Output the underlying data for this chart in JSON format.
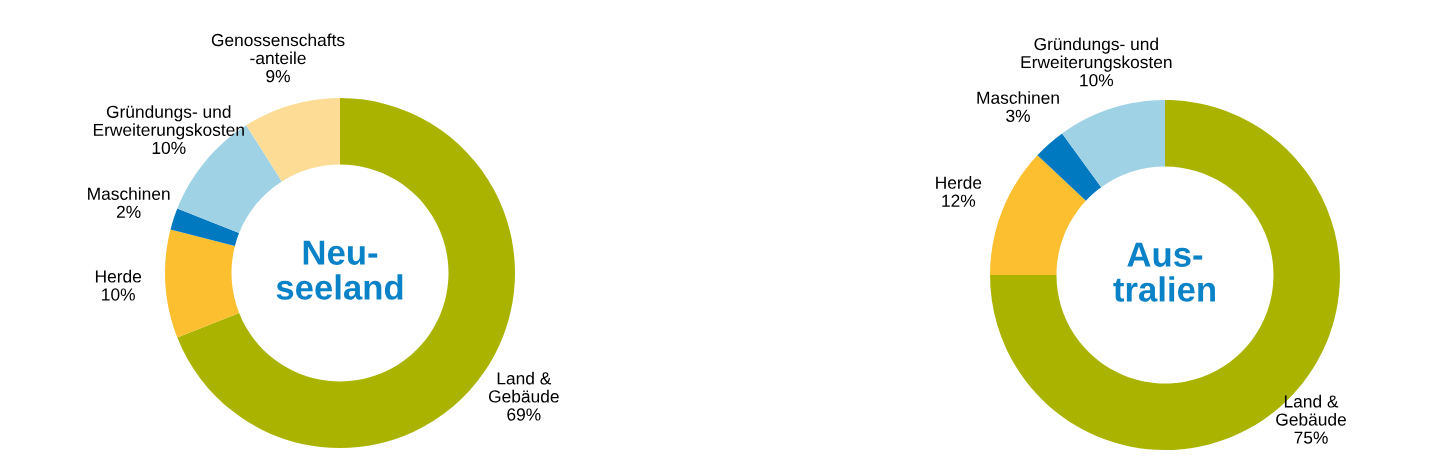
{
  "chart_data": [
    {
      "type": "donut",
      "title": "Neu-\nseeland",
      "categories": [
        "Land &\nGebäude",
        "Herde",
        "Maschinen",
        "Gründungs- und\nErweiterungskosten",
        "Genossenschafts\n-anteile"
      ],
      "values": [
        69,
        10,
        2,
        10,
        9
      ],
      "value_labels": [
        "69%",
        "10%",
        "2%",
        "10%",
        "9%"
      ],
      "colors": [
        "#aab400",
        "#fbbf30",
        "#0079c1",
        "#a0d2e6",
        "#fddc96"
      ]
    },
    {
      "type": "donut",
      "title": "Aus-\ntralien",
      "categories": [
        "Land &\nGebäude",
        "Herde",
        "Maschinen",
        "Gründungs- und\nErweiterungskosten"
      ],
      "values": [
        75,
        12,
        3,
        10
      ],
      "value_labels": [
        "75%",
        "12%",
        "3%",
        "10%"
      ],
      "colors": [
        "#aab400",
        "#fbbf30",
        "#0079c1",
        "#a0d2e6"
      ]
    }
  ]
}
